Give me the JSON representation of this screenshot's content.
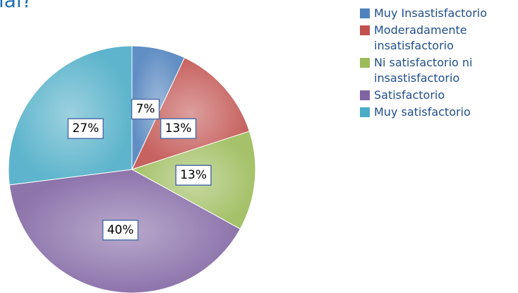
{
  "chart_data": {
    "type": "pie",
    "title": "ial?",
    "categories": [
      "Muy Insastisfactorio",
      "Moderadamente insatisfactorio",
      "Ni satisfactorio ni insastisfactorio",
      "Satisfactorio",
      "Muy satisfactorio"
    ],
    "values": [
      7,
      13,
      13,
      40,
      27
    ],
    "value_labels": [
      "7%",
      "13%",
      "13%",
      "40%",
      "27%"
    ],
    "colors": [
      "#4f81bd",
      "#c0504d",
      "#9bbb59",
      "#8064a2",
      "#4bacc6"
    ],
    "legend": "right"
  }
}
